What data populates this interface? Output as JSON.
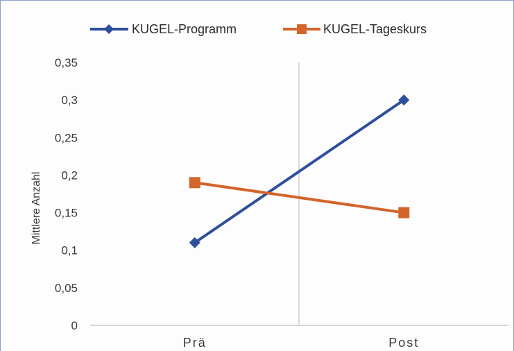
{
  "chart_data": {
    "type": "line",
    "title": "",
    "xlabel": "",
    "ylabel": "Mittlere Anzahl",
    "categories": [
      "Prä",
      "Post"
    ],
    "ylim": [
      0,
      0.35
    ],
    "yticks": [
      0,
      0.05,
      0.1,
      0.15,
      0.2,
      0.25,
      0.3,
      0.35
    ],
    "ytick_labels": [
      "0",
      "0,05",
      "0,1",
      "0,15",
      "0,2",
      "0,25",
      "0,3",
      "0,35"
    ],
    "grid": false,
    "legend_position": "top",
    "series": [
      {
        "name": "KUGEL-Programm",
        "values": [
          0.11,
          0.3
        ],
        "color": "#2e4f9c",
        "marker": "diamond"
      },
      {
        "name": "KUGEL-Tageskurs",
        "values": [
          0.19,
          0.15
        ],
        "color": "#d4642a",
        "marker": "square"
      }
    ]
  }
}
